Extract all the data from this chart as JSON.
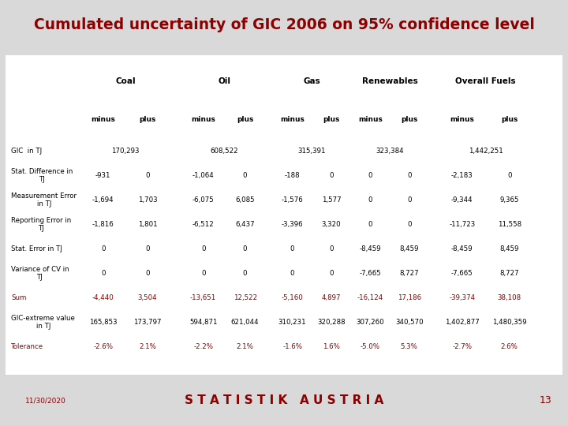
{
  "title": "Cumulated uncertainty of GIC 2006 on 95% confidence level",
  "title_color": "#8B0000",
  "bg_color": "#D9D9D9",
  "table_bg": "#FFFFFF",
  "footer_bg": "#D9D9D9",
  "footer_date": "11/30/2020",
  "footer_text": "S T A T I S T I K   A U S T R I A",
  "footer_page": "13",
  "col_headers": [
    "Coal",
    "Oil",
    "Gas",
    "Renewables",
    "Overall Fuels"
  ],
  "sub_headers": [
    "minus",
    "plus",
    "minus",
    "plus",
    "minus",
    "plus",
    "minus",
    "plus",
    "minus",
    "plus"
  ],
  "rows": [
    {
      "label": "GIC  in TJ",
      "values": [
        "170,293",
        "",
        "608,522",
        "",
        "315,391",
        "",
        "323,384",
        "",
        "1,442,251",
        ""
      ],
      "bold": false,
      "color": "#000000"
    },
    {
      "label": "Stat. Difference in\nTJ",
      "values": [
        "-931",
        "0",
        "-1,064",
        "0",
        "-188",
        "0",
        "0",
        "0",
        "-2,183",
        "0"
      ],
      "bold": false,
      "color": "#000000"
    },
    {
      "label": "Measurement Error\nin TJ",
      "values": [
        "-1,694",
        "1,703",
        "-6,075",
        "6,085",
        "-1,576",
        "1,577",
        "0",
        "0",
        "-9,344",
        "9,365"
      ],
      "bold": false,
      "color": "#000000"
    },
    {
      "label": "Reporting Error in\nTJ",
      "values": [
        "-1,816",
        "1,801",
        "-6,512",
        "6,437",
        "-3,396",
        "3,320",
        "0",
        "0",
        "-11,723",
        "11,558"
      ],
      "bold": false,
      "color": "#000000"
    },
    {
      "label": "Stat. Error in TJ",
      "values": [
        "0",
        "0",
        "0",
        "0",
        "0",
        "0",
        "-8,459",
        "8,459",
        "-8,459",
        "8,459"
      ],
      "bold": false,
      "color": "#000000"
    },
    {
      "label": "Variance of CV in\nTJ",
      "values": [
        "0",
        "0",
        "0",
        "0",
        "0",
        "0",
        "-7,665",
        "8,727",
        "-7,665",
        "8,727"
      ],
      "bold": false,
      "color": "#000000"
    },
    {
      "label": "Sum",
      "values": [
        "-4,440",
        "3,504",
        "-13,651",
        "12,522",
        "-5,160",
        "4,897",
        "-16,124",
        "17,186",
        "-39,374",
        "38,108"
      ],
      "bold": false,
      "color": "#8B0000"
    },
    {
      "label": "GIC-extreme value\nin TJ",
      "values": [
        "165,853",
        "173,797",
        "594,871",
        "621,044",
        "310,231",
        "320,288",
        "307,260",
        "340,570",
        "1,402,877",
        "1,480,359"
      ],
      "bold": false,
      "color": "#000000"
    },
    {
      "label": "Tolerance",
      "values": [
        "-2.6%",
        "2.1%",
        "-2.2%",
        "2.1%",
        "-1.6%",
        "1.6%",
        "-5.0%",
        "5.3%",
        "-2.7%",
        "2.6%"
      ],
      "bold": false,
      "color": "#8B0000"
    }
  ]
}
